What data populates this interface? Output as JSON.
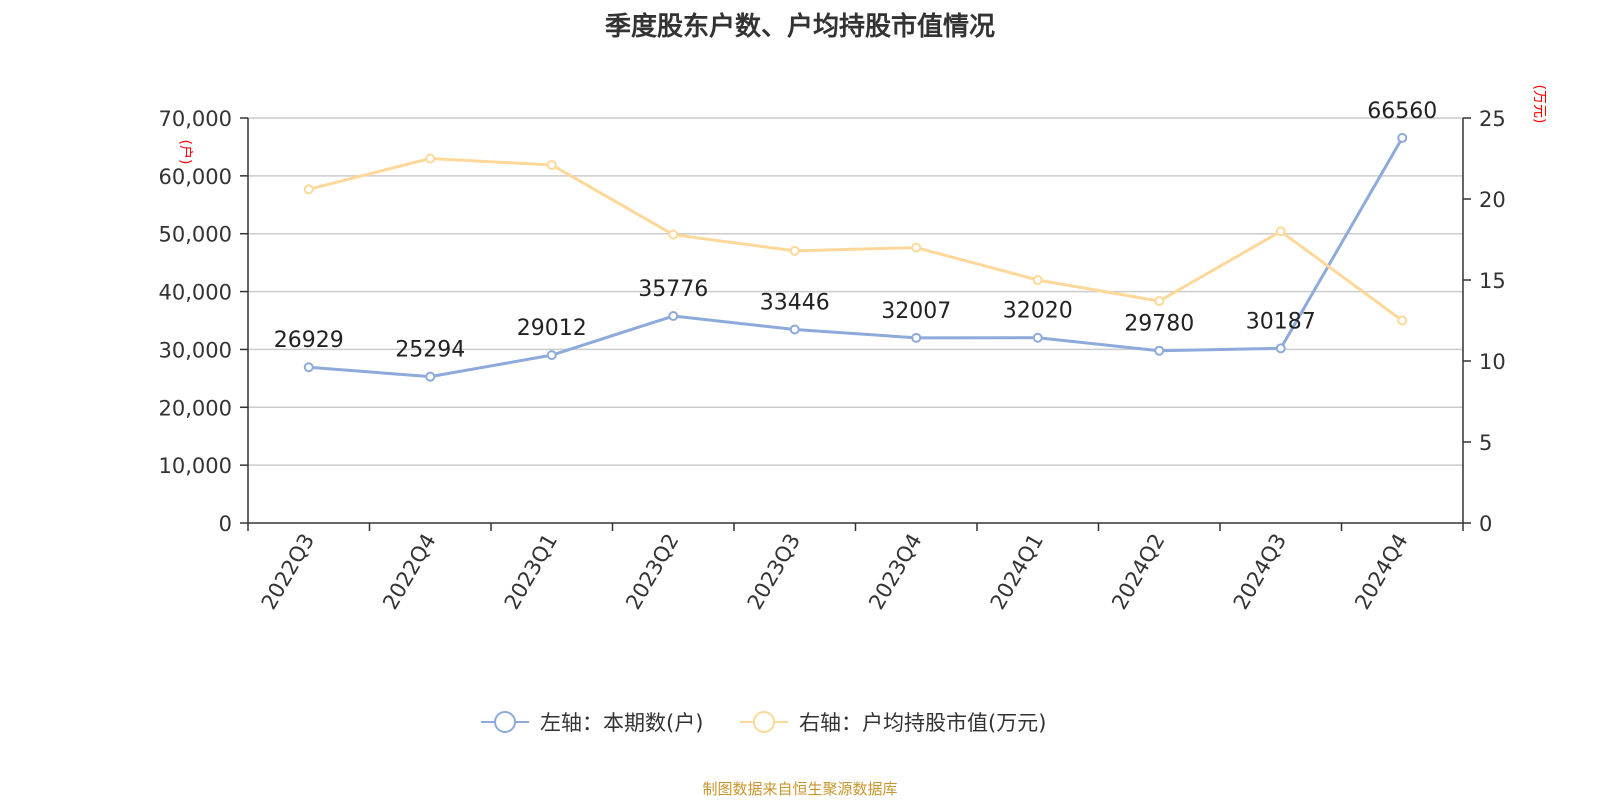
{
  "title": "季度股东户数、户均持股市值情况",
  "source": "制图数据来自恒生聚源数据库",
  "chart_data": {
    "type": "line",
    "categories": [
      "2022Q3",
      "2022Q4",
      "2023Q1",
      "2023Q2",
      "2023Q3",
      "2023Q4",
      "2024Q1",
      "2024Q2",
      "2024Q3",
      "2024Q4"
    ],
    "series": [
      {
        "name": "左轴：本期数(户)",
        "axis": "left",
        "color": "#8eaadb",
        "values": [
          26929,
          25294,
          29012,
          35776,
          33446,
          32007,
          32020,
          29780,
          30187,
          66560
        ],
        "data_labels": [
          "26929",
          "25294",
          "29012",
          "35776",
          "33446",
          "32007",
          "32020",
          "29780",
          "30187",
          "66560"
        ]
      },
      {
        "name": "右轴：户均持股市值(万元)",
        "axis": "right",
        "color": "#fdd89a",
        "values": [
          20.6,
          22.5,
          22.1,
          17.8,
          16.8,
          17.0,
          15.0,
          13.7,
          18.0,
          12.5
        ]
      }
    ],
    "left_axis": {
      "unit": "(户)",
      "ylim": [
        0,
        70000
      ],
      "ticks": [
        0,
        10000,
        20000,
        30000,
        40000,
        50000,
        60000,
        70000
      ],
      "tick_labels": [
        "0",
        "10,000",
        "20,000",
        "30,000",
        "40,000",
        "50,000",
        "60,000",
        "70,000"
      ]
    },
    "right_axis": {
      "unit": "(万元)",
      "ylim": [
        0,
        25
      ],
      "ticks": [
        0,
        5,
        10,
        15,
        20,
        25
      ],
      "tick_labels": [
        "0",
        "5",
        "10",
        "15",
        "20",
        "25"
      ]
    },
    "grid": true,
    "legend_position": "bottom-center",
    "unit_label_color": "#ff0000"
  }
}
